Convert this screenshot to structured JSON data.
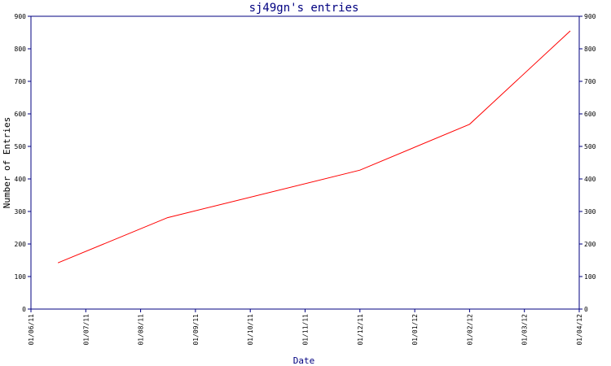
{
  "chart_data": {
    "type": "line",
    "title": "sj49gn's entries",
    "xlabel": "Date",
    "ylabel": "Number of Entries",
    "x_ticks": [
      "01/06/11",
      "01/07/11",
      "01/08/11",
      "01/09/11",
      "01/10/11",
      "01/11/11",
      "01/12/11",
      "01/01/12",
      "01/02/12",
      "01/03/12",
      "01/04/12"
    ],
    "y_ticks": [
      0,
      100,
      200,
      300,
      400,
      500,
      600,
      700,
      800,
      900
    ],
    "ylim": [
      0,
      900
    ],
    "xlim": [
      "2011-06-01",
      "2012-04-01"
    ],
    "grid": false,
    "series": [
      {
        "color": "#ff0000",
        "x": [
          "2011-06-16",
          "2011-08-16",
          "2011-12-01",
          "2012-01-31",
          "2012-03-27"
        ],
        "y": [
          142,
          281,
          427,
          568,
          855
        ]
      }
    ],
    "colors": {
      "axis": "#000080",
      "line": "#ff0000"
    }
  }
}
